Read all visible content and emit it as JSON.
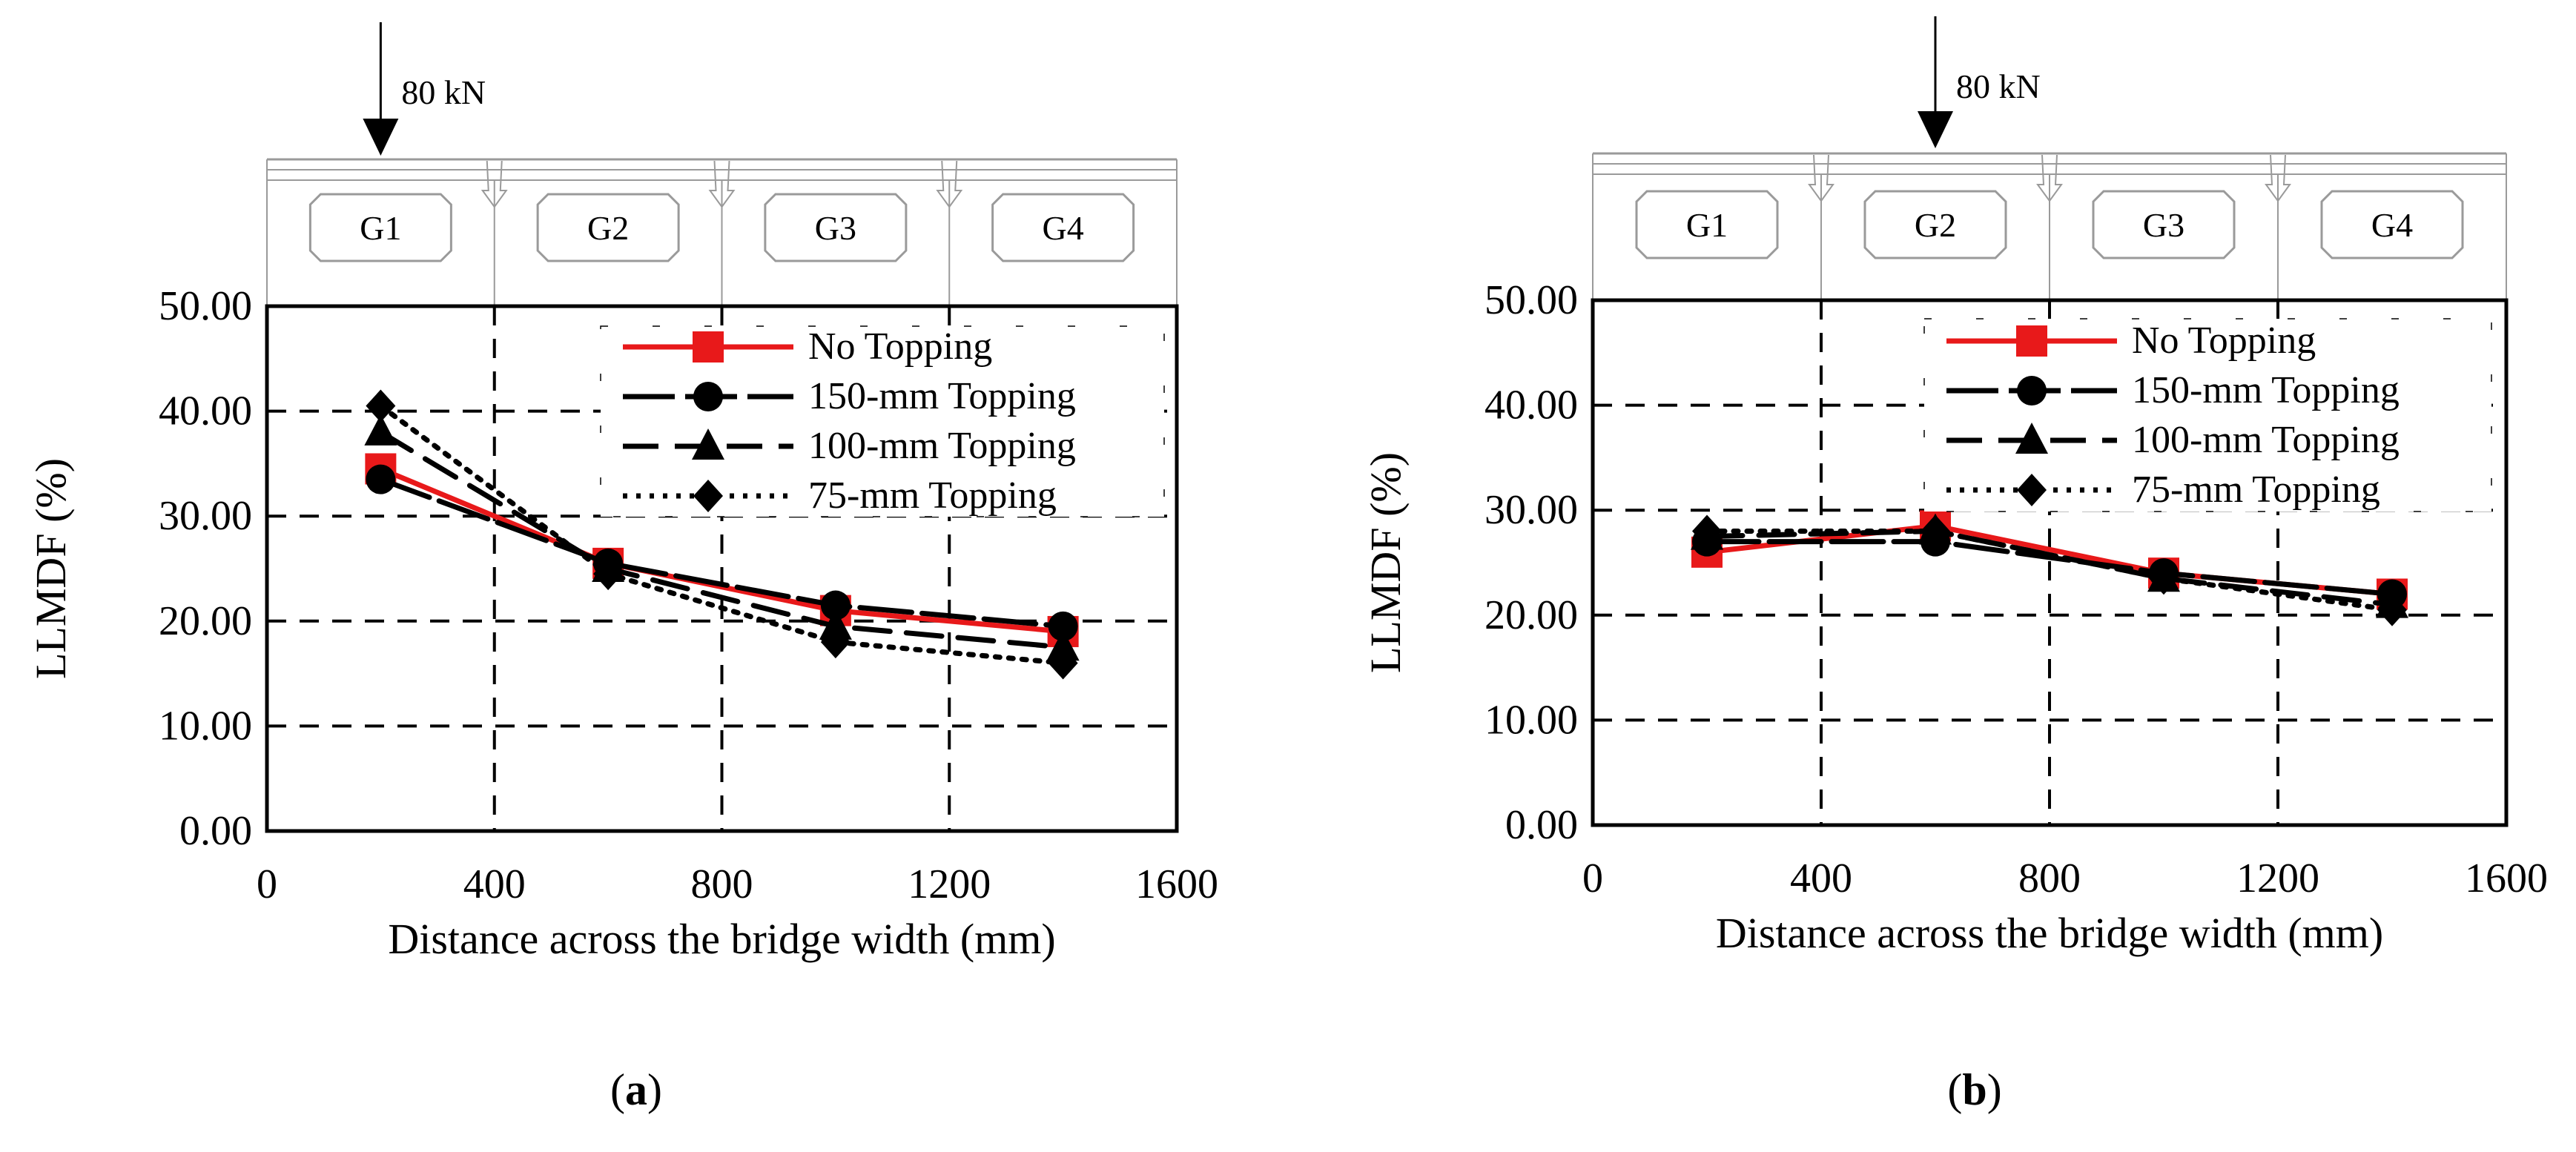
{
  "chart_data": [
    {
      "type": "line",
      "panel_label": "a",
      "load_label": "80 kN",
      "load_x": 200,
      "girders": [
        "G1",
        "G2",
        "G3",
        "G4"
      ],
      "xlabel": "Distance across the bridge width (mm)",
      "ylabel": "LLMDF (%)",
      "xlim": [
        0,
        1600
      ],
      "ylim": [
        0,
        50
      ],
      "xticks": [
        "0",
        "400",
        "800",
        "1200",
        "1600"
      ],
      "yticks": [
        "0.00",
        "10.00",
        "20.00",
        "30.00",
        "40.00",
        "50.00"
      ],
      "x": [
        200,
        600,
        1000,
        1400
      ],
      "series": [
        {
          "name": "No Topping",
          "values": [
            34.5,
            25.5,
            21.0,
            19.0
          ]
        },
        {
          "name": "150-mm Topping",
          "values": [
            33.5,
            25.5,
            21.5,
            19.5
          ]
        },
        {
          "name": "100-mm Topping",
          "values": [
            38.0,
            25.0,
            19.5,
            17.5
          ]
        },
        {
          "name": "75-mm Topping",
          "values": [
            40.5,
            24.5,
            18.0,
            16.0
          ]
        }
      ],
      "colors": {
        "No Topping": "#e8191a",
        "150-mm Topping": "#000000",
        "100-mm Topping": "#000000",
        "75-mm Topping": "#000000"
      }
    },
    {
      "type": "line",
      "panel_label": "b",
      "load_label": "80 kN",
      "load_x": 600,
      "girders": [
        "G1",
        "G2",
        "G3",
        "G4"
      ],
      "xlabel": "Distance across the bridge width (mm)",
      "ylabel": "LLMDF (%)",
      "xlim": [
        0,
        1600
      ],
      "ylim": [
        0,
        50
      ],
      "xticks": [
        "0",
        "400",
        "800",
        "1200",
        "1600"
      ],
      "yticks": [
        "0.00",
        "10.00",
        "20.00",
        "30.00",
        "40.00",
        "50.00"
      ],
      "x": [
        200,
        600,
        1000,
        1400
      ],
      "series": [
        {
          "name": "No Topping",
          "values": [
            26.0,
            28.5,
            24.0,
            22.0
          ]
        },
        {
          "name": "150-mm Topping",
          "values": [
            27.0,
            27.0,
            24.0,
            22.0
          ]
        },
        {
          "name": "100-mm Topping",
          "values": [
            27.5,
            28.0,
            23.5,
            21.0
          ]
        },
        {
          "name": "75-mm Topping",
          "values": [
            28.0,
            28.0,
            23.5,
            20.5
          ]
        }
      ],
      "colors": {
        "No Topping": "#e8191a",
        "150-mm Topping": "#000000",
        "100-mm Topping": "#000000",
        "75-mm Topping": "#000000"
      }
    }
  ]
}
